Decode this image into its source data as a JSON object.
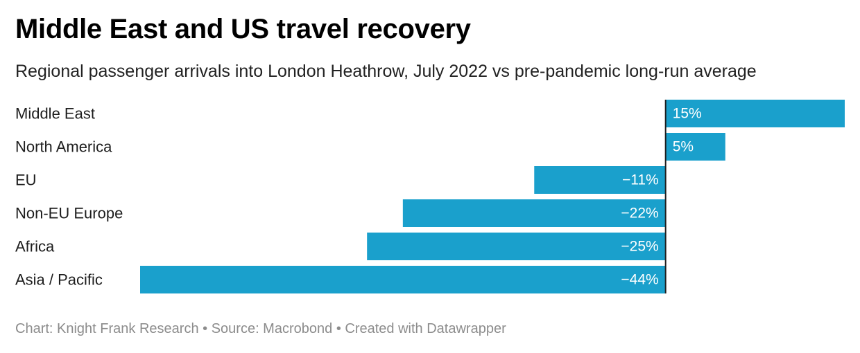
{
  "title": "Middle East and US travel recovery",
  "subtitle": "Regional passenger arrivals into London Heathrow, July 2022 vs pre-pandemic long-run average",
  "footer": {
    "chart_credit": "Chart: Knight Frank Research",
    "separator": "•",
    "source": "Source: Macrobond",
    "created_with": "Created with Datawrapper"
  },
  "colors": {
    "bar": "#1aa0cc",
    "axis": "#1d1d1d",
    "label": "#1d1d1d",
    "value_label": "#ffffff"
  },
  "chart_data": {
    "type": "bar",
    "orientation": "horizontal",
    "categories": [
      "Middle East",
      "North America",
      "EU",
      "Non-EU Europe",
      "Africa",
      "Asia / Pacific"
    ],
    "values": [
      15,
      5,
      -11,
      -22,
      -25,
      -44
    ],
    "value_labels": [
      "15%",
      "5%",
      "−11%",
      "−22%",
      "−25%",
      "−44%"
    ],
    "unit": "%",
    "xlim": [
      -44,
      15
    ],
    "grid": false,
    "legend": "none"
  }
}
